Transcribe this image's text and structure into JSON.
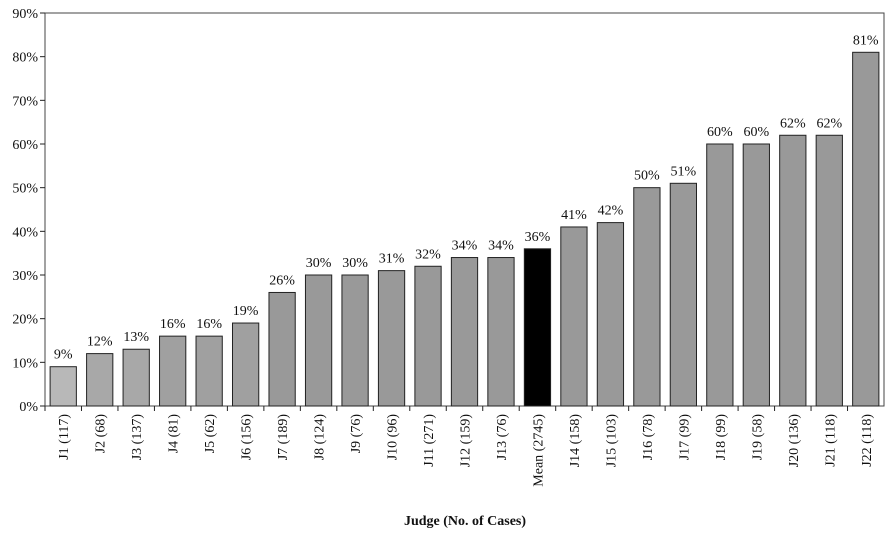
{
  "chart_data": {
    "type": "bar",
    "x_label": "Judge (No. of Cases)",
    "categories": [
      "J1 (117)",
      "J2 (68)",
      "J3 (137)",
      "J4 (81)",
      "J5 (62)",
      "J6 (156)",
      "J7 (189)",
      "J8 (124)",
      "J9 (76)",
      "J10 (96)",
      "J11 (271)",
      "J12 (159)",
      "J13 (76)",
      "Mean (2745)",
      "J14 (158)",
      "J15 (103)",
      "J16 (78)",
      "J17 (99)",
      "J18 (99)",
      "J19 (58)",
      "J20 (136)",
      "J21 (118)",
      "J22 (118)"
    ],
    "values": [
      9,
      12,
      13,
      16,
      16,
      19,
      26,
      30,
      30,
      31,
      32,
      34,
      34,
      36,
      41,
      42,
      50,
      51,
      60,
      60,
      62,
      62,
      81
    ],
    "value_labels": [
      "9%",
      "12%",
      "13%",
      "16%",
      "16%",
      "19%",
      "26%",
      "30%",
      "30%",
      "31%",
      "32%",
      "34%",
      "34%",
      "36%",
      "41%",
      "42%",
      "50%",
      "51%",
      "60%",
      "60%",
      "62%",
      "62%",
      "81%"
    ],
    "colors": [
      "#b8b8b8",
      "#a8a8a8",
      "#a8a8a8",
      "#a0a0a0",
      "#a0a0a0",
      "#a0a0a0",
      "#999999",
      "#999999",
      "#999999",
      "#999999",
      "#999999",
      "#999999",
      "#999999",
      "#000000",
      "#999999",
      "#999999",
      "#999999",
      "#999999",
      "#999999",
      "#999999",
      "#999999",
      "#999999",
      "#999999"
    ],
    "ylim": [
      0,
      90
    ],
    "yticks": [
      {
        "value": 0,
        "label": "0%"
      },
      {
        "value": 10,
        "label": "10%"
      },
      {
        "value": 20,
        "label": "20%"
      },
      {
        "value": 30,
        "label": "30%"
      },
      {
        "value": 40,
        "label": "40%"
      },
      {
        "value": 50,
        "label": "50%"
      },
      {
        "value": 60,
        "label": "60%"
      },
      {
        "value": 70,
        "label": "70%"
      },
      {
        "value": 80,
        "label": "80%"
      },
      {
        "value": 90,
        "label": "90%"
      }
    ],
    "grid": false
  }
}
